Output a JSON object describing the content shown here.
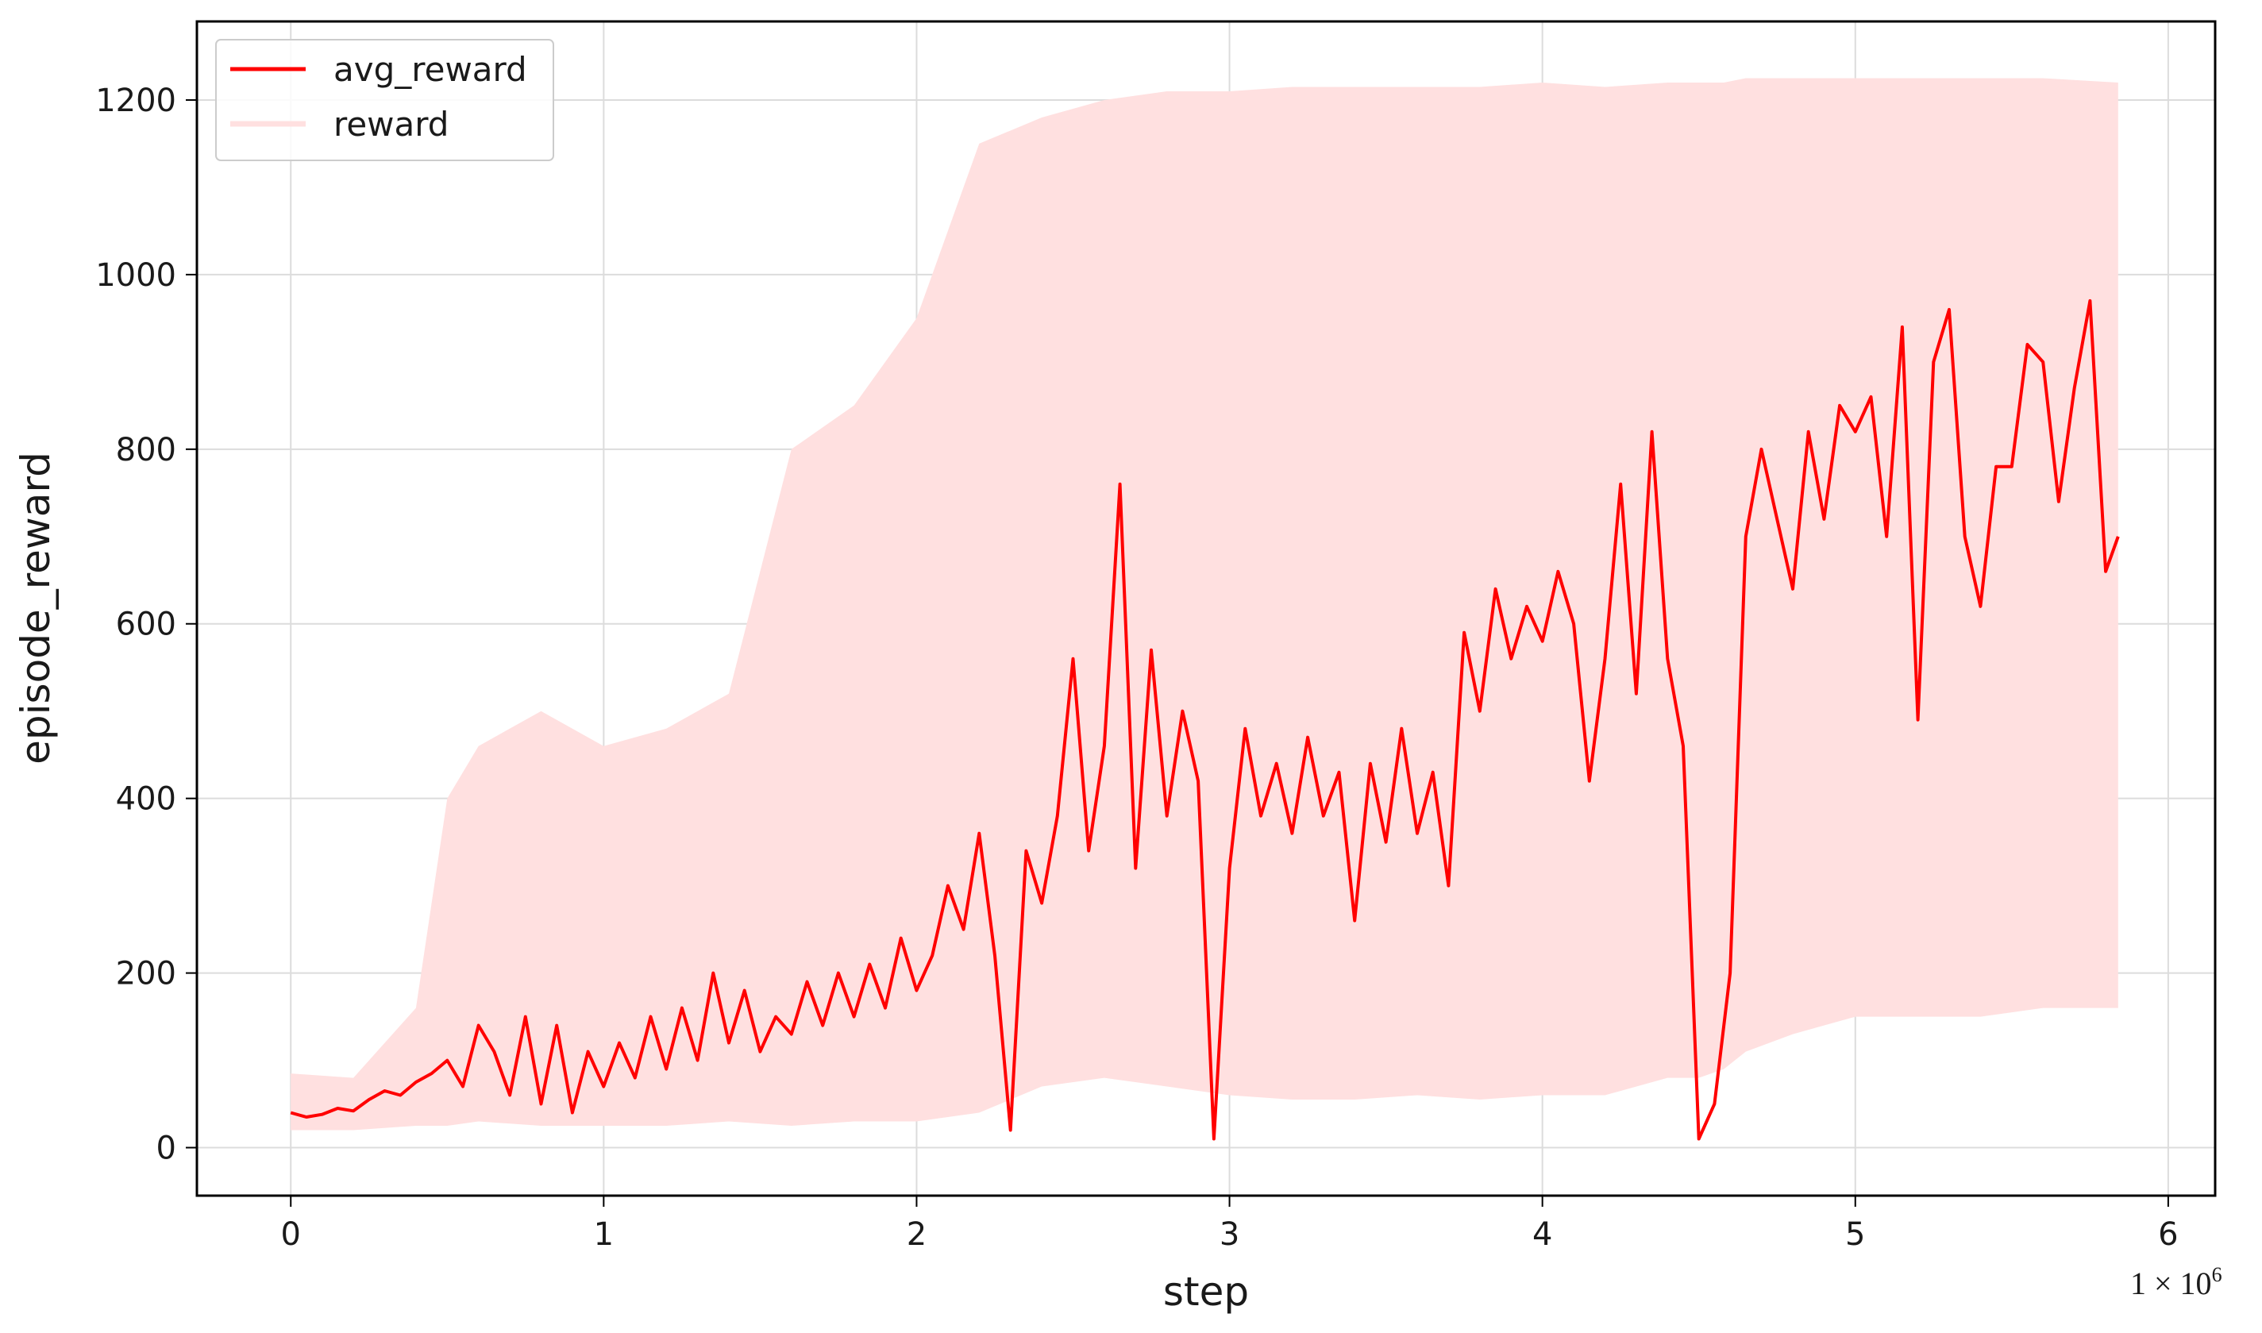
{
  "chart_data": {
    "type": "line",
    "xlabel": "step",
    "ylabel": "episode_reward",
    "x_multiplier": "1 × 10",
    "x_multiplier_exp": "6",
    "xlim": [
      -0.3,
      6.15
    ],
    "ylim": [
      -55,
      1290
    ],
    "xticks": [
      0,
      1,
      2,
      3,
      4,
      5,
      6
    ],
    "yticks": [
      0,
      200,
      400,
      600,
      800,
      1000,
      1200
    ],
    "grid": true,
    "legend_position": "top-left",
    "colors": {
      "avg_reward": "#ff0000",
      "reward": "#ffe0e0"
    },
    "series": [
      {
        "name": "avg_reward",
        "style": "line",
        "points": [
          [
            0,
            40
          ],
          [
            0.05,
            35
          ],
          [
            0.1,
            38
          ],
          [
            0.15,
            45
          ],
          [
            0.2,
            42
          ],
          [
            0.25,
            55
          ],
          [
            0.3,
            65
          ],
          [
            0.35,
            60
          ],
          [
            0.4,
            75
          ],
          [
            0.45,
            85
          ],
          [
            0.5,
            100
          ],
          [
            0.55,
            70
          ],
          [
            0.6,
            140
          ],
          [
            0.65,
            110
          ],
          [
            0.7,
            60
          ],
          [
            0.75,
            150
          ],
          [
            0.8,
            50
          ],
          [
            0.85,
            140
          ],
          [
            0.9,
            40
          ],
          [
            0.95,
            110
          ],
          [
            1.0,
            70
          ],
          [
            1.05,
            120
          ],
          [
            1.1,
            80
          ],
          [
            1.15,
            150
          ],
          [
            1.2,
            90
          ],
          [
            1.25,
            160
          ],
          [
            1.3,
            100
          ],
          [
            1.35,
            200
          ],
          [
            1.4,
            120
          ],
          [
            1.45,
            180
          ],
          [
            1.5,
            110
          ],
          [
            1.55,
            150
          ],
          [
            1.6,
            130
          ],
          [
            1.65,
            190
          ],
          [
            1.7,
            140
          ],
          [
            1.75,
            200
          ],
          [
            1.8,
            150
          ],
          [
            1.85,
            210
          ],
          [
            1.9,
            160
          ],
          [
            1.95,
            240
          ],
          [
            2.0,
            180
          ],
          [
            2.05,
            220
          ],
          [
            2.1,
            300
          ],
          [
            2.15,
            250
          ],
          [
            2.2,
            360
          ],
          [
            2.25,
            220
          ],
          [
            2.3,
            20
          ],
          [
            2.35,
            340
          ],
          [
            2.4,
            280
          ],
          [
            2.45,
            380
          ],
          [
            2.5,
            560
          ],
          [
            2.55,
            340
          ],
          [
            2.6,
            460
          ],
          [
            2.65,
            760
          ],
          [
            2.7,
            320
          ],
          [
            2.75,
            570
          ],
          [
            2.8,
            380
          ],
          [
            2.85,
            500
          ],
          [
            2.9,
            420
          ],
          [
            2.95,
            10
          ],
          [
            3.0,
            320
          ],
          [
            3.05,
            480
          ],
          [
            3.1,
            380
          ],
          [
            3.15,
            440
          ],
          [
            3.2,
            360
          ],
          [
            3.25,
            470
          ],
          [
            3.3,
            380
          ],
          [
            3.35,
            430
          ],
          [
            3.4,
            260
          ],
          [
            3.45,
            440
          ],
          [
            3.5,
            350
          ],
          [
            3.55,
            480
          ],
          [
            3.6,
            360
          ],
          [
            3.65,
            430
          ],
          [
            3.7,
            300
          ],
          [
            3.75,
            590
          ],
          [
            3.8,
            500
          ],
          [
            3.85,
            640
          ],
          [
            3.9,
            560
          ],
          [
            3.95,
            620
          ],
          [
            4.0,
            580
          ],
          [
            4.05,
            660
          ],
          [
            4.1,
            600
          ],
          [
            4.15,
            420
          ],
          [
            4.2,
            560
          ],
          [
            4.25,
            760
          ],
          [
            4.3,
            520
          ],
          [
            4.35,
            820
          ],
          [
            4.4,
            560
          ],
          [
            4.45,
            460
          ],
          [
            4.5,
            10
          ],
          [
            4.55,
            50
          ],
          [
            4.6,
            200
          ],
          [
            4.65,
            700
          ],
          [
            4.7,
            800
          ],
          [
            4.75,
            720
          ],
          [
            4.8,
            640
          ],
          [
            4.85,
            820
          ],
          [
            4.9,
            720
          ],
          [
            4.95,
            850
          ],
          [
            5.0,
            820
          ],
          [
            5.05,
            860
          ],
          [
            5.1,
            700
          ],
          [
            5.15,
            940
          ],
          [
            5.2,
            490
          ],
          [
            5.25,
            900
          ],
          [
            5.3,
            960
          ],
          [
            5.35,
            700
          ],
          [
            5.4,
            620
          ],
          [
            5.45,
            780
          ],
          [
            5.5,
            780
          ],
          [
            5.55,
            920
          ],
          [
            5.6,
            900
          ],
          [
            5.65,
            740
          ],
          [
            5.7,
            870
          ],
          [
            5.75,
            970
          ],
          [
            5.8,
            660
          ],
          [
            5.84,
            700
          ]
        ]
      },
      {
        "name": "reward",
        "style": "band",
        "points": [
          [
            0,
            20,
            85
          ],
          [
            0.2,
            20,
            80
          ],
          [
            0.4,
            25,
            160
          ],
          [
            0.5,
            25,
            400
          ],
          [
            0.6,
            30,
            460
          ],
          [
            0.8,
            25,
            500
          ],
          [
            1.0,
            25,
            460
          ],
          [
            1.2,
            25,
            480
          ],
          [
            1.4,
            30,
            520
          ],
          [
            1.6,
            25,
            800
          ],
          [
            1.8,
            30,
            850
          ],
          [
            2.0,
            30,
            950
          ],
          [
            2.2,
            40,
            1150
          ],
          [
            2.4,
            70,
            1180
          ],
          [
            2.6,
            80,
            1200
          ],
          [
            2.8,
            70,
            1210
          ],
          [
            3.0,
            60,
            1210
          ],
          [
            3.2,
            55,
            1215
          ],
          [
            3.4,
            55,
            1215
          ],
          [
            3.6,
            60,
            1215
          ],
          [
            3.8,
            55,
            1215
          ],
          [
            4.0,
            60,
            1220
          ],
          [
            4.2,
            60,
            1215
          ],
          [
            4.4,
            80,
            1220
          ],
          [
            4.5,
            80,
            1220
          ],
          [
            4.58,
            90,
            1220
          ],
          [
            4.65,
            110,
            1225
          ],
          [
            4.8,
            130,
            1225
          ],
          [
            5.0,
            150,
            1225
          ],
          [
            5.2,
            150,
            1225
          ],
          [
            5.4,
            150,
            1225
          ],
          [
            5.6,
            160,
            1225
          ],
          [
            5.84,
            160,
            1220
          ]
        ]
      }
    ]
  }
}
